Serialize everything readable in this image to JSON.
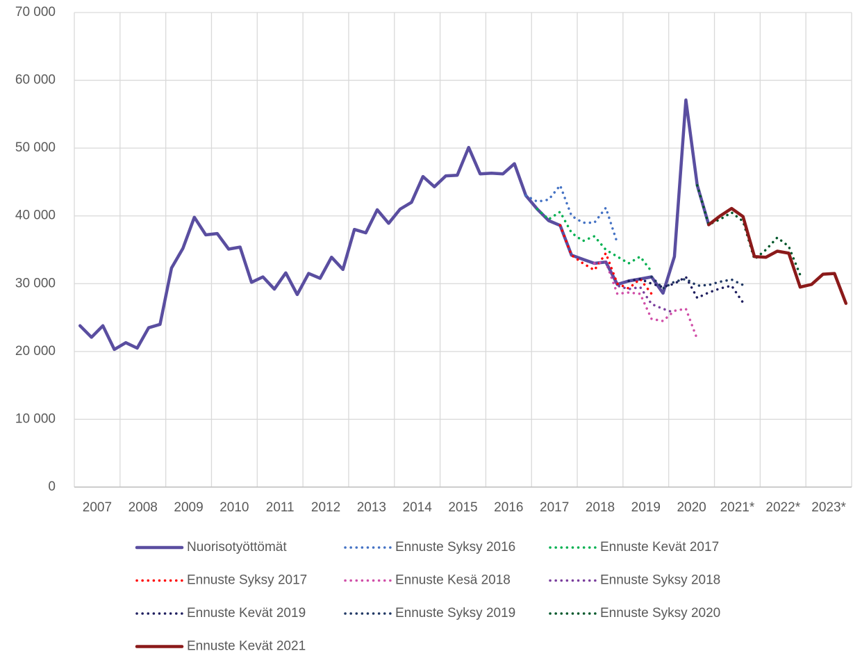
{
  "chart_data": {
    "type": "line",
    "x": [
      2007.125,
      2007.375,
      2007.625,
      2007.875,
      2008.125,
      2008.375,
      2008.625,
      2008.875,
      2009.125,
      2009.375,
      2009.625,
      2009.875,
      2010.125,
      2010.375,
      2010.625,
      2010.875,
      2011.125,
      2011.375,
      2011.625,
      2011.875,
      2012.125,
      2012.375,
      2012.625,
      2012.875,
      2013.125,
      2013.375,
      2013.625,
      2013.875,
      2014.125,
      2014.375,
      2014.625,
      2014.875,
      2015.125,
      2015.375,
      2015.625,
      2015.875,
      2016.125,
      2016.375,
      2016.625,
      2016.875,
      2017.125,
      2017.375,
      2017.625,
      2017.875,
      2018.125,
      2018.375,
      2018.625,
      2018.875,
      2019.125,
      2019.375,
      2019.625,
      2019.875,
      2020.125,
      2020.375,
      2020.625,
      2020.875,
      2021.125,
      2021.375,
      2021.625,
      2021.875,
      2022.125,
      2022.375,
      2022.625,
      2022.875,
      2023.125,
      2023.375,
      2023.625,
      2023.875
    ],
    "xlim": [
      2007,
      2024
    ],
    "xticks": [
      {
        "value": 2007.5,
        "label": "2007"
      },
      {
        "value": 2008.5,
        "label": "2008"
      },
      {
        "value": 2009.5,
        "label": "2009"
      },
      {
        "value": 2010.5,
        "label": "2010"
      },
      {
        "value": 2011.5,
        "label": "2011"
      },
      {
        "value": 2012.5,
        "label": "2012"
      },
      {
        "value": 2013.5,
        "label": "2013"
      },
      {
        "value": 2014.5,
        "label": "2014"
      },
      {
        "value": 2015.5,
        "label": "2015"
      },
      {
        "value": 2016.5,
        "label": "2016"
      },
      {
        "value": 2017.5,
        "label": "2017"
      },
      {
        "value": 2018.5,
        "label": "2018"
      },
      {
        "value": 2019.5,
        "label": "2019"
      },
      {
        "value": 2020.5,
        "label": "2020"
      },
      {
        "value": 2021.5,
        "label": "2021*"
      },
      {
        "value": 2022.5,
        "label": "2022*"
      },
      {
        "value": 2023.5,
        "label": "2023*"
      }
    ],
    "ylim": [
      0,
      70000
    ],
    "yticks": [
      0,
      {
        "value": 10000,
        "label": "10 000"
      },
      {
        "value": 20000,
        "label": "20 000"
      },
      {
        "value": 30000,
        "label": "30 000"
      },
      {
        "value": 40000,
        "label": "40 000"
      },
      {
        "value": 50000,
        "label": "50 000"
      },
      {
        "value": 60000,
        "label": "60 000"
      },
      {
        "value": 70000,
        "label": "70 000"
      }
    ],
    "grid": true,
    "legend": "bottom",
    "series": [
      {
        "name": "Nuorisotyöttömät",
        "color": "#5a4ea0",
        "style": "solid",
        "values": [
          23800,
          22100,
          23800,
          20300,
          21300,
          20500,
          23500,
          24000,
          32300,
          35200,
          39800,
          37200,
          37400,
          35100,
          35400,
          30200,
          31000,
          29200,
          31600,
          28400,
          31500,
          30800,
          33900,
          32100,
          38000,
          37500,
          40900,
          38900,
          41000,
          42000,
          45800,
          44300,
          45900,
          46000,
          50100,
          46200,
          46300,
          46200,
          47700,
          43000,
          41000,
          39300,
          38600,
          34200,
          33600,
          33000,
          33200,
          29900,
          30400,
          30700,
          31000,
          28600,
          34000,
          57100,
          44500,
          38700,
          null,
          null,
          null,
          null,
          null,
          null,
          null,
          null,
          null,
          null,
          null,
          null
        ]
      },
      {
        "name": "Ennuste Syksy 2016",
        "color": "#4472c4",
        "style": "dotted",
        "values": [
          null,
          null,
          null,
          null,
          null,
          null,
          null,
          null,
          null,
          null,
          null,
          null,
          null,
          null,
          null,
          null,
          null,
          null,
          null,
          null,
          null,
          null,
          null,
          null,
          null,
          null,
          null,
          null,
          null,
          null,
          null,
          null,
          null,
          null,
          null,
          null,
          null,
          null,
          null,
          43000,
          42100,
          42400,
          44500,
          40000,
          39000,
          39000,
          41200,
          36000,
          null,
          null,
          null,
          null,
          null,
          null,
          null,
          null,
          null,
          null,
          null,
          null,
          null,
          null,
          null,
          null,
          null,
          null,
          null,
          null
        ]
      },
      {
        "name": "Ennuste Kevät 2017",
        "color": "#00b050",
        "style": "dotted",
        "values": [
          null,
          null,
          null,
          null,
          null,
          null,
          null,
          null,
          null,
          null,
          null,
          null,
          null,
          null,
          null,
          null,
          null,
          null,
          null,
          null,
          null,
          null,
          null,
          null,
          null,
          null,
          null,
          null,
          null,
          null,
          null,
          null,
          null,
          null,
          null,
          null,
          null,
          null,
          null,
          null,
          41000,
          39500,
          40600,
          37500,
          36300,
          37000,
          35000,
          34000,
          33000,
          34000,
          31800,
          null,
          null,
          null,
          null,
          null,
          null,
          null,
          null,
          null,
          null,
          null,
          null,
          null,
          null,
          null,
          null,
          null
        ]
      },
      {
        "name": "Ennuste Syksy 2017",
        "color": "#ff0000",
        "style": "dotted",
        "values": [
          null,
          null,
          null,
          null,
          null,
          null,
          null,
          null,
          null,
          null,
          null,
          null,
          null,
          null,
          null,
          null,
          null,
          null,
          null,
          null,
          null,
          null,
          null,
          null,
          null,
          null,
          null,
          null,
          null,
          null,
          null,
          null,
          null,
          null,
          null,
          null,
          null,
          null,
          null,
          null,
          null,
          null,
          38600,
          34200,
          33000,
          32000,
          34500,
          30000,
          29300,
          30700,
          28500,
          null,
          null,
          null,
          null,
          null,
          null,
          null,
          null,
          null,
          null,
          null,
          null,
          null,
          null,
          null,
          null,
          null
        ]
      },
      {
        "name": "Ennuste Kesä 2018",
        "color": "#d04fa8",
        "style": "dotted",
        "values": [
          null,
          null,
          null,
          null,
          null,
          null,
          null,
          null,
          null,
          null,
          null,
          null,
          null,
          null,
          null,
          null,
          null,
          null,
          null,
          null,
          null,
          null,
          null,
          null,
          null,
          null,
          null,
          null,
          null,
          null,
          null,
          null,
          null,
          null,
          null,
          null,
          null,
          null,
          null,
          null,
          null,
          null,
          null,
          null,
          null,
          33000,
          33200,
          28500,
          28700,
          28500,
          24800,
          24500,
          26000,
          26300,
          21800,
          null,
          null,
          null,
          null,
          null,
          null,
          null,
          null,
          null,
          null,
          null,
          null,
          null
        ]
      },
      {
        "name": "Ennuste Syksy 2018",
        "color": "#7a3e9d",
        "style": "dotted",
        "values": [
          null,
          null,
          null,
          null,
          null,
          null,
          null,
          null,
          null,
          null,
          null,
          null,
          null,
          null,
          null,
          null,
          null,
          null,
          null,
          null,
          null,
          null,
          null,
          null,
          null,
          null,
          null,
          null,
          null,
          null,
          null,
          null,
          null,
          null,
          null,
          null,
          null,
          null,
          null,
          null,
          null,
          null,
          null,
          null,
          null,
          null,
          33200,
          29700,
          29200,
          29500,
          27000,
          26300,
          25700,
          null,
          null,
          null,
          null,
          null,
          null,
          null,
          null,
          null,
          null,
          null,
          null,
          null,
          null,
          null
        ]
      },
      {
        "name": "Ennuste Kevät 2019",
        "color": "#1f1f5f",
        "style": "dotted",
        "values": [
          null,
          null,
          null,
          null,
          null,
          null,
          null,
          null,
          null,
          null,
          null,
          null,
          null,
          null,
          null,
          null,
          null,
          null,
          null,
          null,
          null,
          null,
          null,
          null,
          null,
          null,
          null,
          null,
          null,
          null,
          null,
          null,
          null,
          null,
          null,
          null,
          null,
          null,
          null,
          null,
          null,
          null,
          null,
          null,
          null,
          null,
          null,
          null,
          30400,
          30700,
          30000,
          29500,
          30000,
          31000,
          27900,
          28700,
          29300,
          29700,
          27200,
          null,
          null,
          null,
          null,
          null,
          null,
          null,
          null,
          null
        ]
      },
      {
        "name": "Ennuste Syksy 2019",
        "color": "#203864",
        "style": "dotted",
        "values": [
          null,
          null,
          null,
          null,
          null,
          null,
          null,
          null,
          null,
          null,
          null,
          null,
          null,
          null,
          null,
          null,
          null,
          null,
          null,
          null,
          null,
          null,
          null,
          null,
          null,
          null,
          null,
          null,
          null,
          null,
          null,
          null,
          null,
          null,
          null,
          null,
          null,
          null,
          null,
          null,
          null,
          null,
          null,
          null,
          null,
          null,
          null,
          null,
          null,
          null,
          31000,
          29300,
          30300,
          30700,
          29700,
          29800,
          30300,
          30600,
          29800,
          null,
          null,
          null,
          null,
          null,
          null,
          null,
          null,
          null
        ]
      },
      {
        "name": "Ennuste Syksy 2020",
        "color": "#00572a",
        "style": "dotted",
        "values": [
          null,
          null,
          null,
          null,
          null,
          null,
          null,
          null,
          null,
          null,
          null,
          null,
          null,
          null,
          null,
          null,
          null,
          null,
          null,
          null,
          null,
          null,
          null,
          null,
          null,
          null,
          null,
          null,
          null,
          null,
          null,
          null,
          null,
          null,
          null,
          null,
          null,
          null,
          null,
          null,
          null,
          null,
          null,
          null,
          null,
          null,
          null,
          null,
          null,
          null,
          null,
          null,
          null,
          null,
          44500,
          38700,
          39500,
          40500,
          39200,
          33600,
          35000,
          36800,
          35500,
          31300,
          null,
          null,
          null,
          null
        ]
      },
      {
        "name": "Ennuste Kevät 2021",
        "color": "#8b1a1a",
        "style": "solid",
        "values": [
          null,
          null,
          null,
          null,
          null,
          null,
          null,
          null,
          null,
          null,
          null,
          null,
          null,
          null,
          null,
          null,
          null,
          null,
          null,
          null,
          null,
          null,
          null,
          null,
          null,
          null,
          null,
          null,
          null,
          null,
          null,
          null,
          null,
          null,
          null,
          null,
          null,
          null,
          null,
          null,
          null,
          null,
          null,
          null,
          null,
          null,
          null,
          null,
          null,
          null,
          null,
          null,
          null,
          null,
          null,
          38700,
          40000,
          41100,
          39900,
          34000,
          33900,
          34800,
          34500,
          29500,
          29900,
          31400,
          31500,
          27100
        ]
      }
    ]
  }
}
